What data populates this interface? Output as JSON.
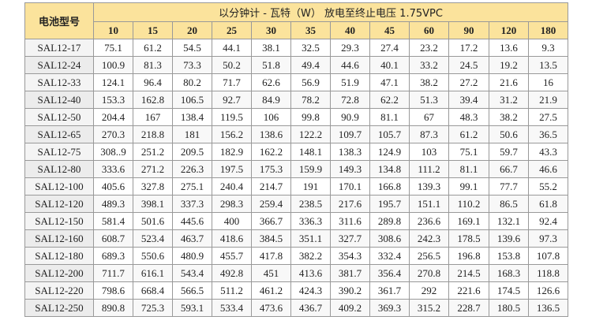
{
  "table": {
    "model_header": "电池型号",
    "group_header": "以分钟计 - 瓦特（W） 放电至终止电压 1.75VPC",
    "columns": [
      "10",
      "15",
      "20",
      "25",
      "30",
      "35",
      "40",
      "45",
      "60",
      "90",
      "120",
      "180"
    ],
    "rows": [
      {
        "model": "SAL12-17",
        "values": [
          "75.1",
          "61.2",
          "54.5",
          "44.1",
          "38.1",
          "32.5",
          "29.3",
          "27.4",
          "23.2",
          "17.2",
          "13.6",
          "9.3"
        ]
      },
      {
        "model": "SAL12-24",
        "values": [
          "100.9",
          "81.3",
          "73.3",
          "50.2",
          "51.8",
          "49.4",
          "44.6",
          "40.1",
          "33.2",
          "24.5",
          "19.2",
          "13.5"
        ]
      },
      {
        "model": "SAL12-33",
        "values": [
          "124.1",
          "96.4",
          "80.2",
          "71.7",
          "62.6",
          "56.9",
          "51.9",
          "47.1",
          "38.2",
          "27.2",
          "21.6",
          "16"
        ]
      },
      {
        "model": "SAL12-40",
        "values": [
          "153.3",
          "162.8",
          "106.5",
          "92.7",
          "84.9",
          "78.2",
          "72.8",
          "62.2",
          "51.3",
          "39.4",
          "31.2",
          "21.9"
        ]
      },
      {
        "model": "SAL12-50",
        "values": [
          "204.4",
          "167",
          "138.4",
          "119.5",
          "106",
          "99.8",
          "90.9",
          "81.1",
          "67",
          "48.3",
          "38.2",
          "27.5"
        ]
      },
      {
        "model": "SAL12-65",
        "values": [
          "270.3",
          "218.8",
          "181",
          "156.2",
          "138.6",
          "122.2",
          "109.7",
          "105.7",
          "87.3",
          "61.2",
          "50.6",
          "36.5"
        ]
      },
      {
        "model": "SAL12-75",
        "values": [
          "308..9",
          "251.2",
          "209.5",
          "182.9",
          "162.2",
          "148.1",
          "138.3",
          "124.9",
          "103",
          "75.1",
          "59.7",
          "43.3"
        ]
      },
      {
        "model": "SAL12-80",
        "values": [
          "333.6",
          "271.2",
          "226.3",
          "197.5",
          "175.3",
          "159.9",
          "149.3",
          "134.8",
          "111.2",
          "81.1",
          "66.7",
          "46.6"
        ]
      },
      {
        "model": "SAL12-100",
        "values": [
          "405.6",
          "327.8",
          "275.1",
          "240.4",
          "214.7",
          "191",
          "170.1",
          "166.8",
          "139.3",
          "99.1",
          "77.7",
          "55.2"
        ]
      },
      {
        "model": "SAL12-120",
        "values": [
          "489.3",
          "398.1",
          "337.3",
          "298.3",
          "259.4",
          "238.5",
          "217.6",
          "195.7",
          "151.1",
          "110.2",
          "86.5",
          "61.8"
        ]
      },
      {
        "model": "SAL12-150",
        "values": [
          "581.4",
          "501.6",
          "445.6",
          "400",
          "366.7",
          "336.3",
          "311.6",
          "289.8",
          "236.6",
          "169.1",
          "132.1",
          "92.4"
        ]
      },
      {
        "model": "SAL12-160",
        "values": [
          "608.7",
          "523.4",
          "463.7",
          "418.6",
          "384.5",
          "351.1",
          "327.7",
          "308.6",
          "242.3",
          "178.5",
          "139.6",
          "97.3"
        ]
      },
      {
        "model": "SAL12-180",
        "values": [
          "689.3",
          "550.6",
          "480.9",
          "455.7",
          "417.8",
          "382.2",
          "354.3",
          "332.4",
          "256.5",
          "196.8",
          "153.8",
          "107.8"
        ]
      },
      {
        "model": "SAL12-200",
        "values": [
          "711.7",
          "616.1",
          "543.4",
          "492.8",
          "451",
          "413.6",
          "381.7",
          "356.4",
          "270.8",
          "214.5",
          "168.3",
          "118.8"
        ]
      },
      {
        "model": "SAL12-220",
        "values": [
          "798.6",
          "668.4",
          "566.5",
          "511.2",
          "461.2",
          "424.3",
          "390.2",
          "361.7",
          "292",
          "221.6",
          "174.5",
          "126.6"
        ]
      },
      {
        "model": "SAL12-250",
        "values": [
          "890.8",
          "725.3",
          "593.1",
          "533.4",
          "473.6",
          "436.7",
          "409.2",
          "369.3",
          "315.2",
          "228.7",
          "180.5",
          "136.5"
        ]
      }
    ]
  }
}
